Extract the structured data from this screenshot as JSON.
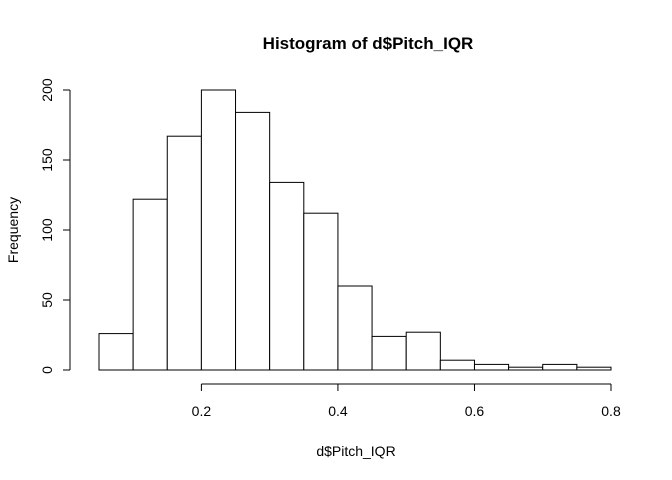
{
  "chart_data": {
    "type": "bar",
    "title": "Histogram of d$Pitch_IQR",
    "xlabel": "d$Pitch_IQR",
    "ylabel": "Frequency",
    "bins": [
      {
        "start": 0.05,
        "end": 0.1,
        "count": 26
      },
      {
        "start": 0.1,
        "end": 0.15,
        "count": 122
      },
      {
        "start": 0.15,
        "end": 0.2,
        "count": 167
      },
      {
        "start": 0.2,
        "end": 0.25,
        "count": 200
      },
      {
        "start": 0.25,
        "end": 0.3,
        "count": 184
      },
      {
        "start": 0.3,
        "end": 0.35,
        "count": 134
      },
      {
        "start": 0.35,
        "end": 0.4,
        "count": 112
      },
      {
        "start": 0.4,
        "end": 0.45,
        "count": 60
      },
      {
        "start": 0.45,
        "end": 0.5,
        "count": 24
      },
      {
        "start": 0.5,
        "end": 0.55,
        "count": 27
      },
      {
        "start": 0.55,
        "end": 0.6,
        "count": 7
      },
      {
        "start": 0.6,
        "end": 0.65,
        "count": 4
      },
      {
        "start": 0.65,
        "end": 0.7,
        "count": 2
      },
      {
        "start": 0.7,
        "end": 0.75,
        "count": 4
      },
      {
        "start": 0.75,
        "end": 0.8,
        "count": 2
      }
    ],
    "xticks": [
      0.2,
      0.4,
      0.6,
      0.8
    ],
    "xtick_labels": [
      "0.2",
      "0.4",
      "0.6",
      "0.8"
    ],
    "yticks": [
      0,
      50,
      100,
      150,
      200
    ],
    "ytick_labels": [
      "0",
      "50",
      "100",
      "150",
      "200"
    ],
    "xlim": [
      0.05,
      0.8
    ],
    "ylim": [
      0,
      200
    ],
    "grid": false,
    "legend": "none",
    "bar_fill": "#ffffff",
    "bar_stroke": "#000000"
  }
}
